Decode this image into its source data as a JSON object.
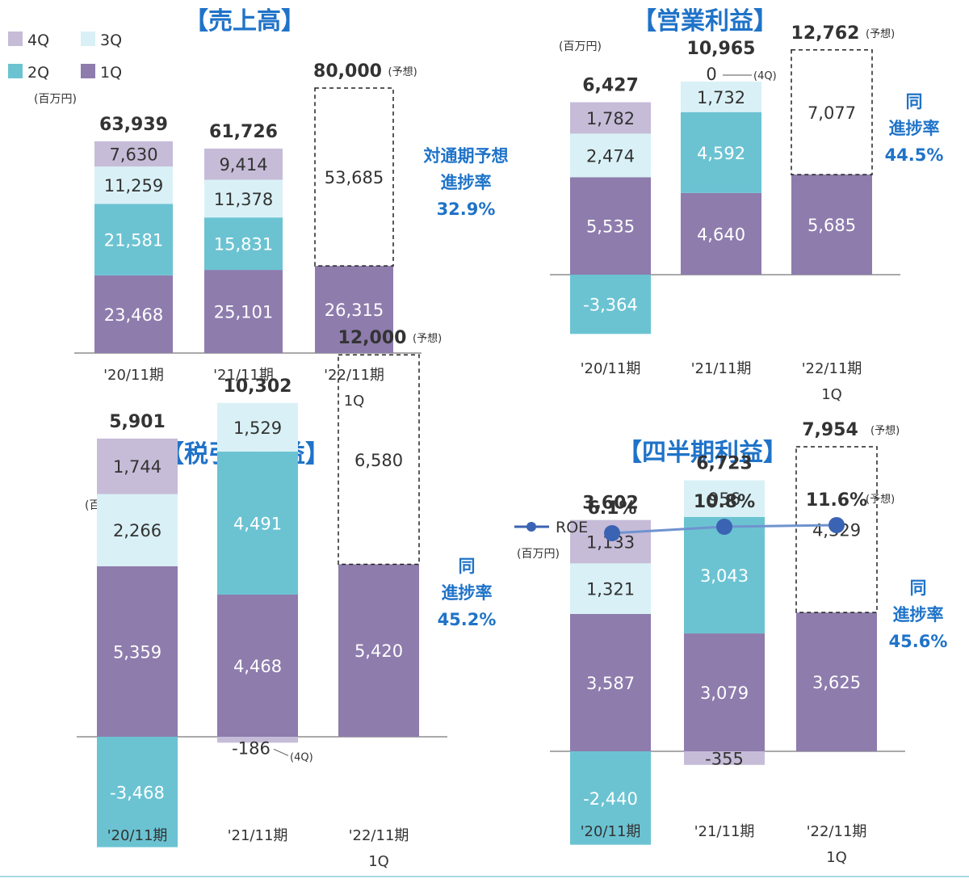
{
  "legend": [
    {
      "label": "4Q",
      "color": "#c6bcd8"
    },
    {
      "label": "3Q",
      "color": "#d9f1f6"
    },
    {
      "label": "2Q",
      "color": "#6bc3d2"
    },
    {
      "label": "1Q",
      "color": "#8e7cad"
    }
  ],
  "colors": {
    "q1": "#8e7cad",
    "q2": "#6bc3d2",
    "q3": "#d9f1f6",
    "q4": "#c6bcd8",
    "title": "#1f73c8"
  },
  "chart_data": [
    {
      "type": "bar",
      "title": "【売上高】",
      "unit": "(百万円)",
      "categories": [
        "'20/11期",
        "'21/11期",
        "'22/11期\n1Q"
      ],
      "totals": [
        "63,939",
        "61,726",
        "80,000"
      ],
      "forecast_label": "(予想)",
      "series": [
        {
          "name": "1Q",
          "values": [
            23468,
            25101,
            26315
          ]
        },
        {
          "name": "2Q",
          "values": [
            21581,
            15831,
            null
          ]
        },
        {
          "name": "3Q",
          "values": [
            11259,
            11378,
            null
          ]
        },
        {
          "name": "4Q",
          "values": [
            7630,
            9414,
            null
          ]
        }
      ],
      "remaining_forecast": 53685,
      "progress": {
        "lines": [
          "対通期予想",
          "進捗率",
          "32.9%"
        ]
      }
    },
    {
      "type": "bar",
      "title": "【営業利益】",
      "unit": "(百万円)",
      "categories": [
        "'20/11期",
        "'21/11期",
        "'22/11期\n1Q"
      ],
      "totals": [
        "6,427",
        "10,965",
        "12,762"
      ],
      "forecast_label": "(予想)",
      "series": [
        {
          "name": "1Q",
          "values": [
            5535,
            4640,
            5685
          ]
        },
        {
          "name": "2Q",
          "values": [
            -3364,
            4592,
            null
          ]
        },
        {
          "name": "3Q",
          "values": [
            2474,
            1732,
            null
          ]
        },
        {
          "name": "4Q",
          "values": [
            1782,
            0,
            null
          ]
        }
      ],
      "remaining_forecast": 7077,
      "progress": {
        "lines": [
          "同",
          "進捗率",
          "44.5%"
        ]
      },
      "annotation": {
        "value": "0",
        "note": "(4Q)"
      }
    },
    {
      "type": "bar",
      "title": "【税引前利益】",
      "unit": "(百万円)",
      "categories": [
        "'20/11期",
        "'21/11期",
        "'22/11期\n1Q"
      ],
      "totals": [
        "5,901",
        "10,302",
        "12,000"
      ],
      "forecast_label": "(予想)",
      "series": [
        {
          "name": "1Q",
          "values": [
            5359,
            4468,
            5420
          ]
        },
        {
          "name": "2Q",
          "values": [
            -3468,
            4491,
            null
          ]
        },
        {
          "name": "3Q",
          "values": [
            2266,
            1529,
            null
          ]
        },
        {
          "name": "4Q",
          "values": [
            1744,
            -186,
            null
          ]
        }
      ],
      "remaining_forecast": 6580,
      "progress": {
        "lines": [
          "同",
          "進捗率",
          "45.2%"
        ]
      },
      "annotation": {
        "value": "-186",
        "note": "(4Q)"
      }
    },
    {
      "type": "bar",
      "title": "【四半期利益】",
      "unit": "(百万円)",
      "categories": [
        "'20/11期",
        "'21/11期",
        "'22/11期\n1Q"
      ],
      "totals": [
        "3,602",
        "6,723",
        "7,954"
      ],
      "forecast_label": "(予想)",
      "series": [
        {
          "name": "1Q",
          "values": [
            3587,
            3079,
            3625
          ]
        },
        {
          "name": "2Q",
          "values": [
            -2440,
            3043,
            null
          ]
        },
        {
          "name": "3Q",
          "values": [
            1321,
            956,
            null
          ]
        },
        {
          "name": "4Q",
          "values": [
            1133,
            -355,
            null
          ]
        }
      ],
      "remaining_forecast": 4329,
      "progress": {
        "lines": [
          "同",
          "進捗率",
          "45.6%"
        ]
      },
      "annotation": {
        "value": "-355",
        "note": "(4Q)"
      },
      "roe": {
        "label": "ROE",
        "values": [
          "6.1%",
          "10.8%",
          "11.6%"
        ],
        "numeric": [
          6.1,
          10.8,
          11.6
        ],
        "forecast_label": "(予想)"
      }
    }
  ]
}
